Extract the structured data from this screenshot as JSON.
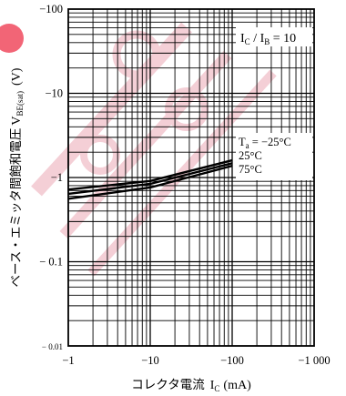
{
  "chart_data": {
    "type": "line",
    "xscale": "log",
    "yscale": "log",
    "xlim": [
      -1,
      -1000
    ],
    "ylim": [
      -0.01,
      -100
    ],
    "x_ticks": [
      "−1",
      "−10",
      "−100",
      "−1 000"
    ],
    "y_ticks": [
      "−100",
      "−10",
      "−1",
      "− 0.1",
      "− 0.01"
    ],
    "xlabel": {
      "text": "コレクタ電流",
      "symbol": "I",
      "sub": "C",
      "unit": "(mA)"
    },
    "ylabel": {
      "text": "ベース・エミッタ間飽和電圧",
      "symbol": "V",
      "sub": "BE(sat)",
      "unit": "(V)"
    },
    "condition": {
      "lhs": "I",
      "lhs_sub": "C",
      "mid": " / I",
      "mid_sub": "B",
      "rhs": " = 10"
    },
    "grid": true,
    "series": [
      {
        "name": "Tₐ = −25°C",
        "label_sym": "T",
        "label_sub": "a",
        "label_rest": " = −25°C",
        "points": [
          [
            -1,
            -0.72
          ],
          [
            -10,
            -0.91
          ],
          [
            -100,
            -1.6
          ]
        ]
      },
      {
        "name": "25°C",
        "label_rest": "25°C",
        "points": [
          [
            -1,
            -0.64
          ],
          [
            -10,
            -0.84
          ],
          [
            -100,
            -1.48
          ]
        ]
      },
      {
        "name": "75°C",
        "label_rest": "75°C",
        "points": [
          [
            -1,
            -0.56
          ],
          [
            -10,
            -0.76
          ],
          [
            -100,
            -1.38
          ]
        ]
      }
    ]
  },
  "colors": {
    "watermark": "#f2c4cc",
    "watermark_dot": "#ef3f55",
    "line": "#000000",
    "grid": "#000000"
  }
}
